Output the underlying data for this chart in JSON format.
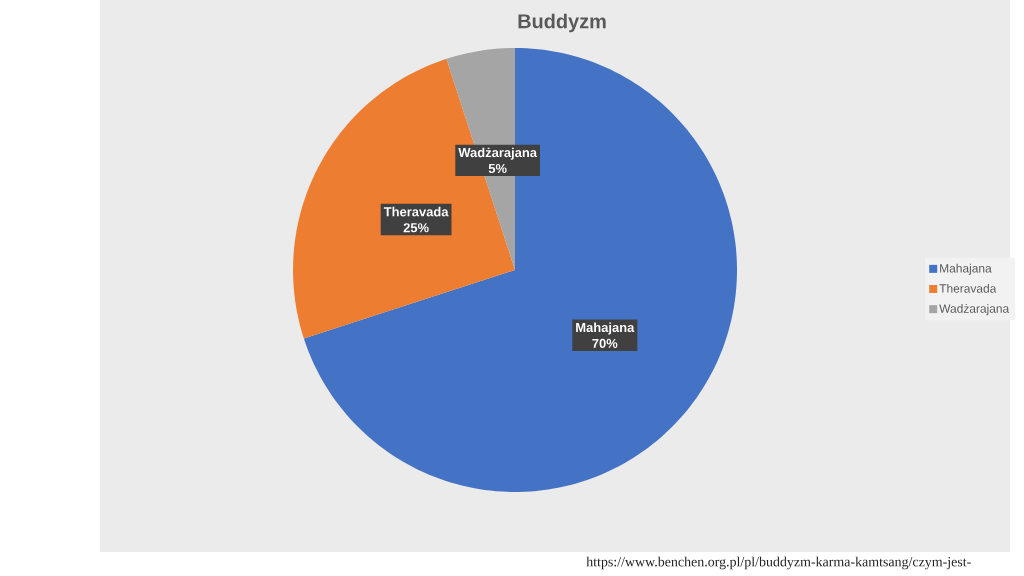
{
  "chart_data": {
    "type": "pie",
    "title": "Buddyzm",
    "categories": [
      "Mahajana",
      "Theravada",
      "Wadżarajana"
    ],
    "values": [
      70,
      25,
      5
    ],
    "colors": [
      "#4472c4",
      "#ed7d31",
      "#a5a5a5"
    ],
    "value_labels": [
      "70%",
      "25%",
      "5%"
    ],
    "legend": "right",
    "annotations": [
      "https://www.benchen.org.pl/pl/buddyzm-karma-kamtsang/czym-jest-"
    ]
  }
}
